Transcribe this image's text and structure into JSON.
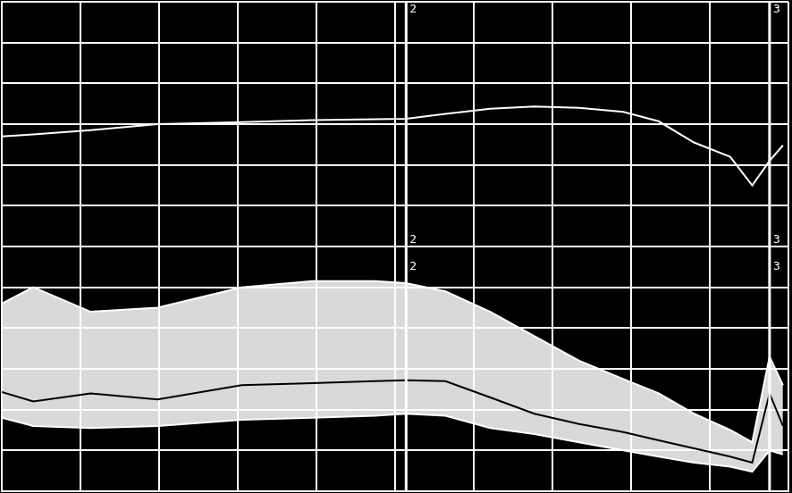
{
  "chart_data": {
    "type": "line",
    "x": [
      0,
      0.4,
      1.13,
      1.98,
      3.05,
      3.95,
      4.74,
      5.14,
      5.64,
      6.21,
      6.77,
      7.34,
      7.9,
      8.35,
      8.8,
      9.26,
      9.54,
      9.76,
      9.93
    ],
    "series": [
      {
        "color": "#ffffff",
        "values": [
          8.7,
          8.75,
          8.85,
          9.0,
          9.05,
          9.1,
          9.12,
          9.13,
          9.25,
          9.38,
          9.43,
          9.4,
          9.3,
          9.07,
          8.55,
          8.2,
          7.5,
          8.1,
          8.48
        ]
      },
      {
        "color": "#ffffff",
        "type": "band",
        "values": [
          4.6,
          5.0,
          4.4,
          4.5,
          5.0,
          5.15,
          5.15,
          5.1,
          4.9,
          4.4,
          3.8,
          3.2,
          2.75,
          2.4,
          1.9,
          1.5,
          1.2,
          3.3,
          2.6
        ]
      },
      {
        "color": "#000000",
        "values": [
          2.43,
          2.2,
          2.4,
          2.25,
          2.6,
          2.65,
          2.7,
          2.72,
          2.7,
          2.3,
          1.9,
          1.65,
          1.45,
          1.25,
          1.05,
          0.85,
          0.7,
          2.4,
          1.6
        ]
      },
      {
        "color": "#ffffff",
        "type": "band",
        "values": [
          1.8,
          1.6,
          1.55,
          1.6,
          1.75,
          1.8,
          1.85,
          1.9,
          1.85,
          1.55,
          1.4,
          1.2,
          1.0,
          0.85,
          0.7,
          0.6,
          0.48,
          1.0,
          0.9
        ]
      }
    ],
    "annotations": [
      {
        "x": 5.14,
        "text": "2"
      },
      {
        "x": 9.76,
        "text": "3"
      }
    ],
    "xlim": [
      0,
      10
    ],
    "xticks": [
      0,
      1,
      2,
      3,
      4,
      5,
      6,
      7,
      8,
      9,
      10
    ],
    "ylim": [
      0,
      12
    ],
    "yticks": [
      0,
      1,
      2,
      3,
      4,
      5,
      6,
      7,
      8,
      9,
      10,
      11,
      12
    ],
    "grid": true,
    "tick_labels": false
  }
}
